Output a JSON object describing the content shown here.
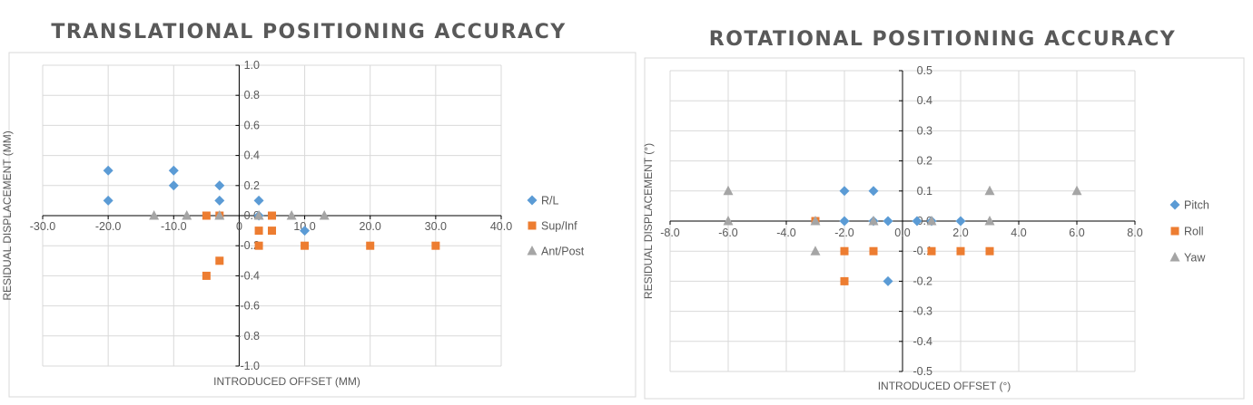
{
  "chart_data": [
    {
      "type": "scatter",
      "title": "TRANSLATIONAL POSITIONING ACCURACY",
      "xlabel": "INTRODUCED OFFSET (MM)",
      "ylabel": "RESIDUAL DISPLACEMENT (MM)",
      "xlim": [
        -30,
        40
      ],
      "ylim": [
        -1,
        1
      ],
      "x_ticks": [
        -30,
        -20,
        -10,
        0,
        10,
        20,
        30,
        40
      ],
      "x_tick_labels": [
        "-30.0",
        "-20.0",
        "-10.0",
        "0",
        "10.0",
        "20.0",
        "30.0",
        "40.0"
      ],
      "y_ticks": [
        -1,
        -0.8,
        -0.6,
        -0.4,
        -0.2,
        0,
        0.2,
        0.4,
        0.6,
        0.8,
        1
      ],
      "y_tick_labels": [
        "-1.0",
        "- 0.8",
        "-0.6",
        "-0.4",
        "-0.2",
        "0.0",
        "0.2",
        "0.4",
        "0.6",
        "0.8",
        "1.0"
      ],
      "grid": true,
      "legend_position": "right",
      "series": [
        {
          "name": "R/L",
          "marker": "diamond",
          "color": "#5b9bd5",
          "points": [
            [
              -20,
              0.3
            ],
            [
              -20,
              0.1
            ],
            [
              -10,
              0.3
            ],
            [
              -10,
              0.2
            ],
            [
              -3,
              0.2
            ],
            [
              -3,
              0.1
            ],
            [
              3,
              0.1
            ],
            [
              3,
              0.0
            ],
            [
              10,
              -0.1
            ]
          ]
        },
        {
          "name": "Sup/Inf",
          "marker": "square",
          "color": "#ed7d31",
          "points": [
            [
              -5,
              0.0
            ],
            [
              -5,
              -0.4
            ],
            [
              -3,
              -0.3
            ],
            [
              -3,
              0.0
            ],
            [
              3,
              -0.1
            ],
            [
              3,
              -0.2
            ],
            [
              5,
              0.0
            ],
            [
              5,
              -0.1
            ],
            [
              10,
              -0.2
            ],
            [
              20,
              -0.2
            ],
            [
              30,
              -0.2
            ]
          ]
        },
        {
          "name": "Ant/Post",
          "marker": "triangle",
          "color": "#a5a5a5",
          "points": [
            [
              -13,
              0.0
            ],
            [
              -8,
              0.0
            ],
            [
              -3,
              0.0
            ],
            [
              3,
              0.0
            ],
            [
              8,
              0.0
            ],
            [
              13,
              0.0
            ]
          ]
        }
      ]
    },
    {
      "type": "scatter",
      "title": "ROTATIONAL POSITIONING ACCURACY",
      "xlabel": "INTRODUCED OFFSET (°)",
      "ylabel": "RESIDUAL DISPLACEMENT (°)",
      "xlim": [
        -8,
        8
      ],
      "ylim": [
        -0.5,
        0.5
      ],
      "x_ticks": [
        -8,
        -6,
        -4,
        -2,
        0,
        2,
        4,
        6,
        8
      ],
      "x_tick_labels": [
        "-8.0",
        "-6.0",
        "-4.0",
        "-2.0",
        "0.0",
        "2.0",
        "4.0",
        "6.0",
        "8.0"
      ],
      "y_ticks": [
        -0.5,
        -0.4,
        -0.3,
        -0.2,
        -0.1,
        0,
        0.1,
        0.2,
        0.3,
        0.4,
        0.5
      ],
      "y_tick_labels": [
        "-0.5",
        "-0.4",
        "-0.3",
        "-0.2",
        "-0.1",
        "0.0",
        "0.1",
        "0.2",
        "0.3",
        "0.4",
        "0.5"
      ],
      "grid": true,
      "legend_position": "right",
      "series": [
        {
          "name": "Pitch",
          "marker": "diamond",
          "color": "#5b9bd5",
          "points": [
            [
              -2,
              0.1
            ],
            [
              -2,
              0.0
            ],
            [
              -1,
              0.1
            ],
            [
              -1,
              0.0
            ],
            [
              -0.5,
              0.0
            ],
            [
              -0.5,
              -0.2
            ],
            [
              0.5,
              0.0
            ],
            [
              1,
              0.0
            ],
            [
              2,
              0.0
            ]
          ]
        },
        {
          "name": "Roll",
          "marker": "square",
          "color": "#ed7d31",
          "points": [
            [
              -3,
              0.0
            ],
            [
              -2,
              -0.1
            ],
            [
              -2,
              -0.2
            ],
            [
              -1,
              -0.1
            ],
            [
              1,
              -0.1
            ],
            [
              2,
              -0.1
            ],
            [
              3,
              -0.1
            ]
          ]
        },
        {
          "name": "Yaw",
          "marker": "triangle",
          "color": "#a5a5a5",
          "points": [
            [
              -6,
              0.1
            ],
            [
              -6,
              0.0
            ],
            [
              -3,
              0.0
            ],
            [
              -3,
              -0.1
            ],
            [
              -1,
              0.0
            ],
            [
              1,
              0.0
            ],
            [
              3,
              0.1
            ],
            [
              3,
              0.0
            ],
            [
              6,
              0.1
            ]
          ]
        }
      ]
    }
  ]
}
